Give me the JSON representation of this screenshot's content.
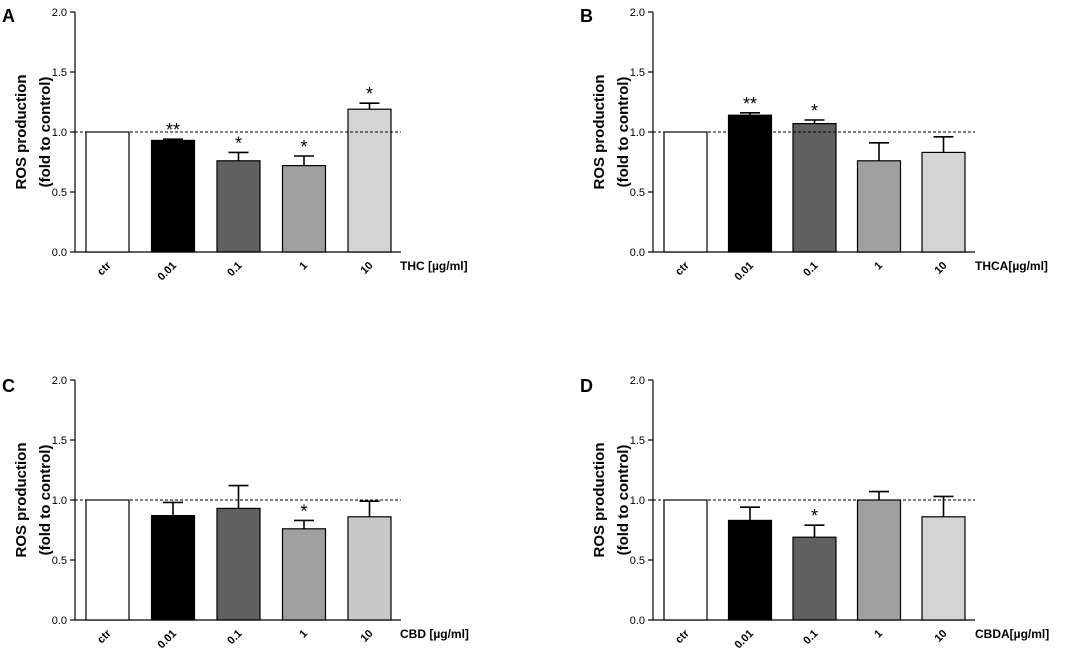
{
  "chart_data": [
    {
      "type": "bar",
      "panel_label": "A",
      "ylabel_line1": "ROS production",
      "ylabel_line2": "(fold to control)",
      "xlabel": "THC [µg/ml]",
      "categories": [
        "ctr",
        "0.01",
        "0.1",
        "1",
        "10"
      ],
      "values": [
        1.0,
        0.93,
        0.76,
        0.72,
        1.19
      ],
      "errors": [
        0.0,
        0.01,
        0.07,
        0.08,
        0.05
      ],
      "annotations": [
        "",
        "**",
        "*",
        "*",
        "*"
      ],
      "colors": [
        "#ffffff",
        "#000000",
        "#606060",
        "#a0a0a0",
        "#d4d4d4"
      ],
      "ylim": [
        0,
        2.0
      ],
      "yticks": [
        "0.0",
        "0.5",
        "1.0",
        "1.5",
        "2.0"
      ],
      "reference_line": 1.0
    },
    {
      "type": "bar",
      "panel_label": "B",
      "ylabel_line1": "ROS production",
      "ylabel_line2": "(fold to control)",
      "xlabel": "THCA[µg/ml]",
      "categories": [
        "ctr",
        "0.01",
        "0.1",
        "1",
        "10"
      ],
      "values": [
        1.0,
        1.14,
        1.07,
        0.76,
        0.83
      ],
      "errors": [
        0.0,
        0.02,
        0.03,
        0.15,
        0.13
      ],
      "annotations": [
        "",
        "**",
        "*",
        "",
        ""
      ],
      "colors": [
        "#ffffff",
        "#000000",
        "#606060",
        "#a0a0a0",
        "#d4d4d4"
      ],
      "ylim": [
        0,
        2.0
      ],
      "yticks": [
        "0.0",
        "0.5",
        "1.0",
        "1.5",
        "2.0"
      ],
      "reference_line": 1.0
    },
    {
      "type": "bar",
      "panel_label": "C",
      "ylabel_line1": "ROS production",
      "ylabel_line2": "(fold to control)",
      "xlabel": "CBD [µg/ml]",
      "categories": [
        "ctr",
        "0.01",
        "0.1",
        "1",
        "10"
      ],
      "values": [
        1.0,
        0.87,
        0.93,
        0.76,
        0.86
      ],
      "errors": [
        0.0,
        0.11,
        0.19,
        0.07,
        0.13
      ],
      "annotations": [
        "",
        "",
        "",
        "*",
        ""
      ],
      "colors": [
        "#ffffff",
        "#000000",
        "#606060",
        "#a0a0a0",
        "#c8c8c8"
      ],
      "ylim": [
        0,
        2.0
      ],
      "yticks": [
        "0.0",
        "0.5",
        "1.0",
        "1.5",
        "2.0"
      ],
      "reference_line": 1.0
    },
    {
      "type": "bar",
      "panel_label": "D",
      "ylabel_line1": "ROS production",
      "ylabel_line2": "(fold to control)",
      "xlabel": "CBDA[µg/ml]",
      "categories": [
        "ctr",
        "0.01",
        "0.1",
        "1",
        "10"
      ],
      "values": [
        1.0,
        0.83,
        0.69,
        1.0,
        0.86
      ],
      "errors": [
        0.0,
        0.11,
        0.1,
        0.07,
        0.17
      ],
      "annotations": [
        "",
        "",
        "*",
        "",
        ""
      ],
      "colors": [
        "#ffffff",
        "#000000",
        "#606060",
        "#a0a0a0",
        "#d4d4d4"
      ],
      "ylim": [
        0,
        2.0
      ],
      "yticks": [
        "0.0",
        "0.5",
        "1.0",
        "1.5",
        "2.0"
      ],
      "reference_line": 1.0
    }
  ]
}
